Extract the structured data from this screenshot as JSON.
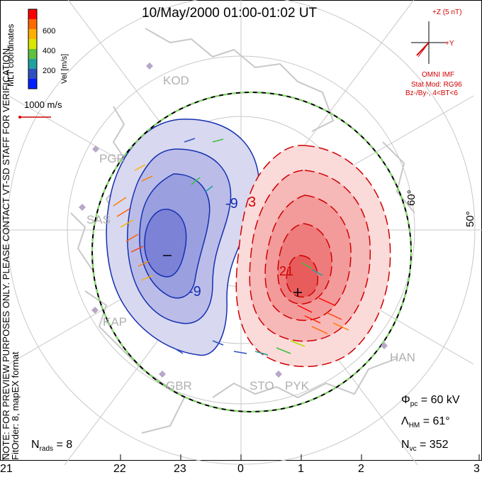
{
  "title": "10/May/2000 01:00-01:02 UT",
  "colorbar": {
    "label": "Vel [m/s]",
    "ticks": [
      "600",
      "400",
      "200"
    ],
    "colors": [
      "#ff0000",
      "#ff6a00",
      "#ffb000",
      "#b0e000",
      "#40c040",
      "#20a0a0",
      "#3050c0",
      "#0020ff"
    ]
  },
  "coords_label": "MLT coordinates",
  "reference_vector": "1000 m/s",
  "imf": {
    "z_label": "+Z (5 nT)",
    "y_label": "+Y",
    "source": "OMNI IMF",
    "stat_mod": "Stat Mod: RG96",
    "condition": "Bz-/By-, 4<BT<6"
  },
  "lat_labels": [
    "60°",
    "50°"
  ],
  "radar_stations": [
    "KOD",
    "PGR",
    "SAS",
    "KAP",
    "GBR",
    "STO",
    "PYK",
    "HAN"
  ],
  "potential_labels": [
    "-9",
    "-9",
    "3",
    "21"
  ],
  "stats": {
    "phi_pc": "= 60 kV",
    "lambda_hm": "= 61°",
    "n_vc": "= 352",
    "n_rads": "= 8"
  },
  "note": {
    "line1": "NOTE: FOR PREVIEW PURPOSES ONLY. PLEASE CONTACT VT-SD STAFF FOR VERIFICATION.",
    "line2": "FitOrder: 8, mapEX format"
  },
  "mlt_ticks": [
    "21",
    "22",
    "23",
    "0",
    "1",
    "2",
    "3"
  ]
}
